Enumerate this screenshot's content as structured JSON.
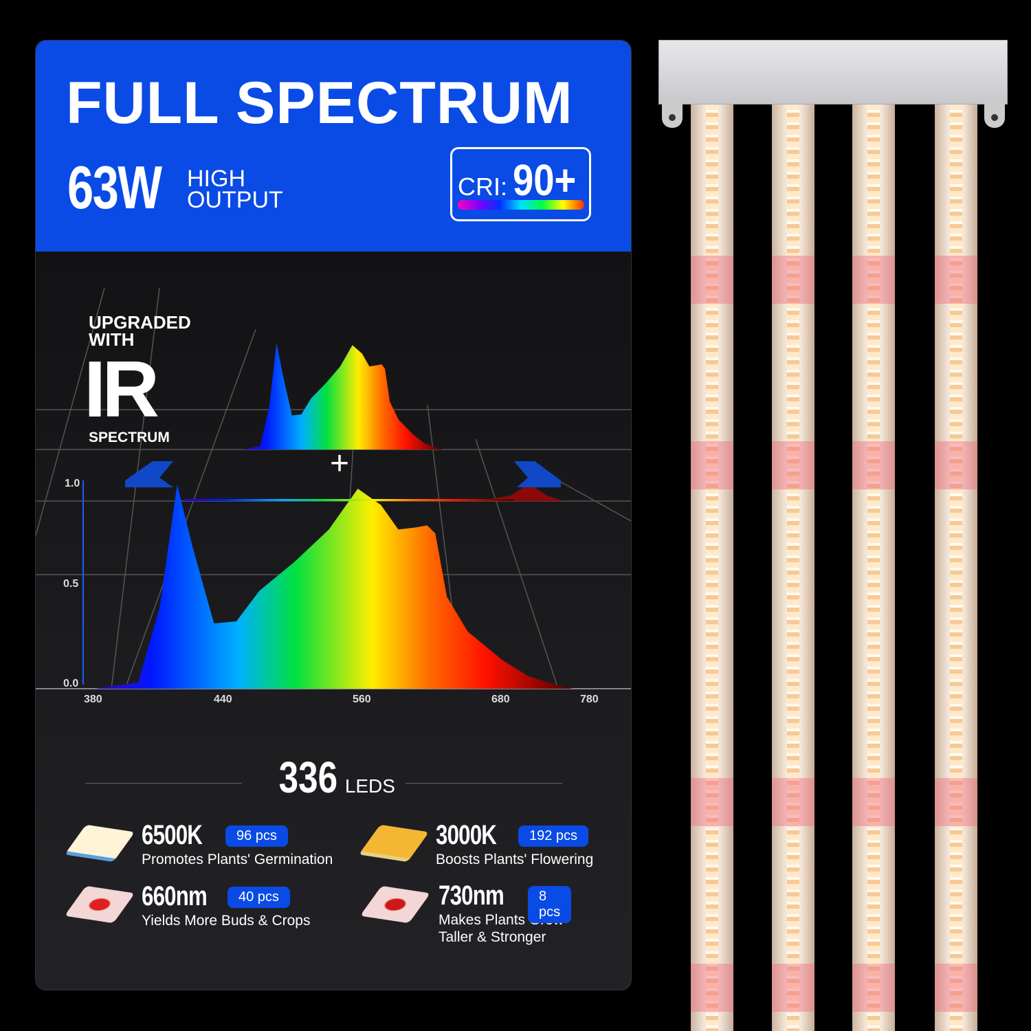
{
  "header": {
    "title": "FULL SPECTRUM",
    "wattage": "63W",
    "wattage_caption_1": "HIGH",
    "wattage_caption_2": "OUTPUT",
    "cri_label": "CRI:",
    "cri_value": "90+"
  },
  "ir_badge": {
    "line1": "UPGRADED",
    "line2": "WITH",
    "big": "IR",
    "line3": "SPECTRUM"
  },
  "plus": "+",
  "chart_data": {
    "type": "area",
    "x_ticks": [
      "380",
      "440",
      "560",
      "680",
      "780"
    ],
    "y_ticks": [
      "0.0",
      "0.5",
      "1.0"
    ],
    "ylim": [
      0,
      1
    ],
    "xlim": [
      380,
      780
    ],
    "grid": true,
    "series": [
      {
        "x": [
          380,
          400,
          410,
          418,
          425,
          435,
          450,
          470,
          500,
          530,
          555,
          575,
          590,
          605,
          615,
          622,
          632,
          650,
          680,
          710,
          740,
          760
        ],
        "y": [
          0,
          0.03,
          0.4,
          1.0,
          0.7,
          0.32,
          0.33,
          0.48,
          0.62,
          0.78,
          0.98,
          0.9,
          0.78,
          0.79,
          0.8,
          0.76,
          0.45,
          0.28,
          0.14,
          0.06,
          0.02,
          0
        ]
      }
    ],
    "ir_series": {
      "x": [
        660,
        690,
        710,
        730,
        750
      ],
      "y": [
        0,
        0.03,
        0.09,
        0.03,
        0
      ]
    }
  },
  "leds": {
    "count": "336",
    "unit": "LEDS",
    "items": [
      {
        "name": "6500K",
        "pcs": "96 pcs",
        "desc": "Promotes Plants' Germination",
        "color": "#fff4d8"
      },
      {
        "name": "3000K",
        "pcs": "192 pcs",
        "desc": "Boosts Plants' Flowering",
        "color": "#f5b733"
      },
      {
        "name": "660nm",
        "pcs": "40 pcs",
        "desc": "Yields More Buds & Crops",
        "color": "#f3d6d6"
      },
      {
        "name": "730nm",
        "pcs": "8 pcs",
        "desc": "Makes Plants Grow",
        "desc2": "Taller & Stronger",
        "color": "#f3d6d6"
      }
    ]
  },
  "colors": {
    "brand_blue": "#0a4be6",
    "background": "#000000"
  }
}
